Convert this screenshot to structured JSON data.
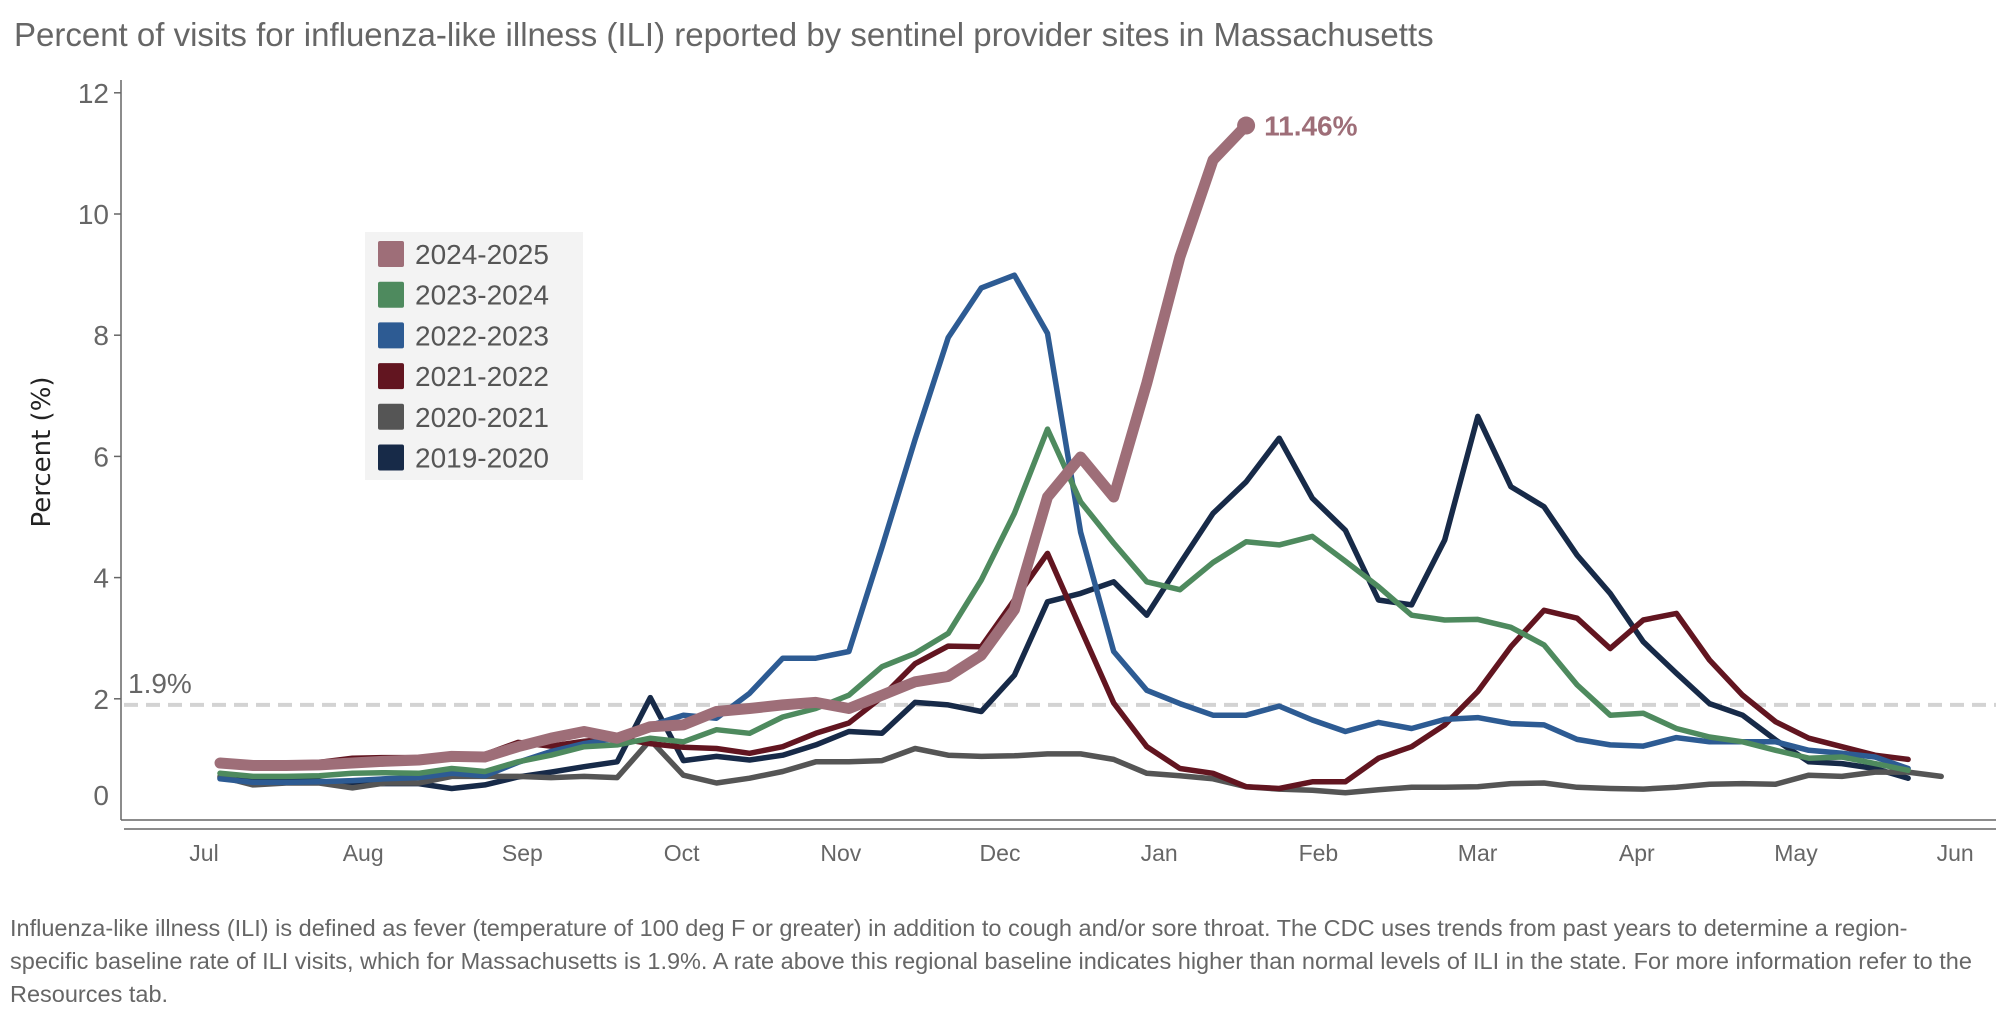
{
  "title": "Percent of visits for influenza-like illness (ILI) reported by sentinel provider sites in Massachusetts",
  "footnote": "Influenza-like illness (ILI) is defined as fever (temperature of 100 deg F or greater) in addition to cough and/or sore throat. The CDC uses trends from past years to determine a region-specific baseline rate of ILI visits, which for Massachusetts is 1.9%. A rate above this regional baseline indicates higher than normal levels of ILI in the state. For more information refer to the Resources tab.",
  "chart_data": {
    "type": "line",
    "title": "Percent of visits for influenza-like illness (ILI) reported by sentinel provider sites in Massachusetts",
    "xlabel": "",
    "ylabel": "Percent (%)",
    "ylim": [
      0,
      12
    ],
    "yticks": [
      "0",
      "2",
      "4",
      "6",
      "8",
      "10",
      "12"
    ],
    "xticks": [
      "Jul",
      "Aug",
      "Sep",
      "Oct",
      "Nov",
      "Dec",
      "Jan",
      "Feb",
      "Mar",
      "Apr",
      "May",
      "Jun"
    ],
    "x_interval": "weekly",
    "grid": false,
    "legend_position": "upper-left inside",
    "baseline": {
      "value": 1.9,
      "label": "1.9%",
      "color": "#d3d3d3"
    },
    "end_label": {
      "series": "2024-2025",
      "text": "11.46%"
    },
    "series": [
      {
        "name": "2024-2025",
        "color": "#9e6e78",
        "values": [
          0.94,
          0.9,
          0.9,
          0.91,
          0.94,
          0.97,
          0.99,
          1.05,
          1.04,
          1.21,
          1.35,
          1.46,
          1.35,
          1.54,
          1.57,
          1.79,
          1.84,
          1.9,
          1.94,
          1.84,
          2.06,
          2.28,
          2.37,
          2.72,
          3.47,
          5.33,
          5.99,
          5.33,
          7.21,
          9.29,
          10.89,
          11.46
        ]
      },
      {
        "name": "2023-2024",
        "color": "#4e8a5e",
        "values": [
          0.77,
          0.72,
          0.72,
          0.73,
          0.77,
          0.78,
          0.77,
          0.85,
          0.8,
          0.96,
          1.07,
          1.21,
          1.24,
          1.35,
          1.29,
          1.49,
          1.43,
          1.7,
          1.84,
          2.06,
          2.53,
          2.75,
          3.08,
          3.96,
          5.06,
          6.45,
          5.25,
          4.57,
          3.93,
          3.8,
          4.25,
          4.59,
          4.54,
          4.68,
          4.27,
          3.85,
          3.38,
          3.3,
          3.31,
          3.18,
          2.89,
          2.23,
          1.73,
          1.76,
          1.51,
          1.37,
          1.29,
          1.15,
          1.02,
          1.04,
          0.93,
          0.82
        ]
      },
      {
        "name": "2022-2023",
        "color": "#2d5b93",
        "values": [
          0.68,
          0.62,
          0.62,
          0.63,
          0.65,
          0.68,
          0.7,
          0.77,
          0.73,
          0.95,
          1.13,
          1.26,
          1.35,
          1.56,
          1.73,
          1.68,
          2.09,
          2.67,
          2.67,
          2.78,
          4.5,
          6.28,
          7.96,
          8.78,
          8.99,
          8.03,
          4.75,
          2.78,
          2.14,
          1.92,
          1.73,
          1.73,
          1.88,
          1.65,
          1.46,
          1.61,
          1.51,
          1.66,
          1.69,
          1.59,
          1.57,
          1.33,
          1.24,
          1.22,
          1.36,
          1.29,
          1.29,
          1.29,
          1.15,
          1.1,
          1.04,
          0.85
        ]
      },
      {
        "name": "2021-2022",
        "color": "#621520",
        "values": [
          0.9,
          0.88,
          0.88,
          0.95,
          1.02,
          1.03,
          1.03,
          1.03,
          1.08,
          1.28,
          1.22,
          1.3,
          1.35,
          1.26,
          1.2,
          1.18,
          1.1,
          1.21,
          1.43,
          1.6,
          2.03,
          2.58,
          2.87,
          2.86,
          3.63,
          4.4,
          3.16,
          1.93,
          1.21,
          0.85,
          0.77,
          0.55,
          0.52,
          0.63,
          0.63,
          1.02,
          1.21,
          1.57,
          2.12,
          2.86,
          3.46,
          3.33,
          2.83,
          3.3,
          3.41,
          2.64,
          2.06,
          1.62,
          1.35,
          1.21,
          1.07,
          1.0
        ]
      },
      {
        "name": "2020-2021",
        "color": "#555555",
        "values": [
          0.72,
          0.58,
          0.61,
          0.61,
          0.53,
          0.61,
          0.61,
          0.72,
          0.72,
          0.72,
          0.7,
          0.72,
          0.7,
          1.32,
          0.74,
          0.61,
          0.69,
          0.8,
          0.96,
          0.96,
          0.98,
          1.18,
          1.07,
          1.05,
          1.06,
          1.09,
          1.09,
          1.0,
          0.77,
          0.73,
          0.68,
          0.55,
          0.51,
          0.49,
          0.45,
          0.5,
          0.54,
          0.54,
          0.55,
          0.6,
          0.61,
          0.54,
          0.52,
          0.51,
          0.54,
          0.59,
          0.6,
          0.59,
          0.74,
          0.72,
          0.79,
          0.79,
          0.72
        ]
      },
      {
        "name": "2019-2020",
        "color": "#172a48",
        "values": [
          0.7,
          0.66,
          0.65,
          0.64,
          0.6,
          0.6,
          0.6,
          0.52,
          0.58,
          0.71,
          0.79,
          0.88,
          0.96,
          2.02,
          0.98,
          1.05,
          0.99,
          1.07,
          1.24,
          1.46,
          1.43,
          1.94,
          1.9,
          1.79,
          2.39,
          3.6,
          3.74,
          3.93,
          3.38,
          4.23,
          5.06,
          5.58,
          6.3,
          5.31,
          4.78,
          3.63,
          3.55,
          4.62,
          6.66,
          5.5,
          5.17,
          4.37,
          3.74,
          2.94,
          2.42,
          1.92,
          1.73,
          1.32,
          0.96,
          0.93,
          0.85,
          0.69
        ]
      }
    ]
  }
}
